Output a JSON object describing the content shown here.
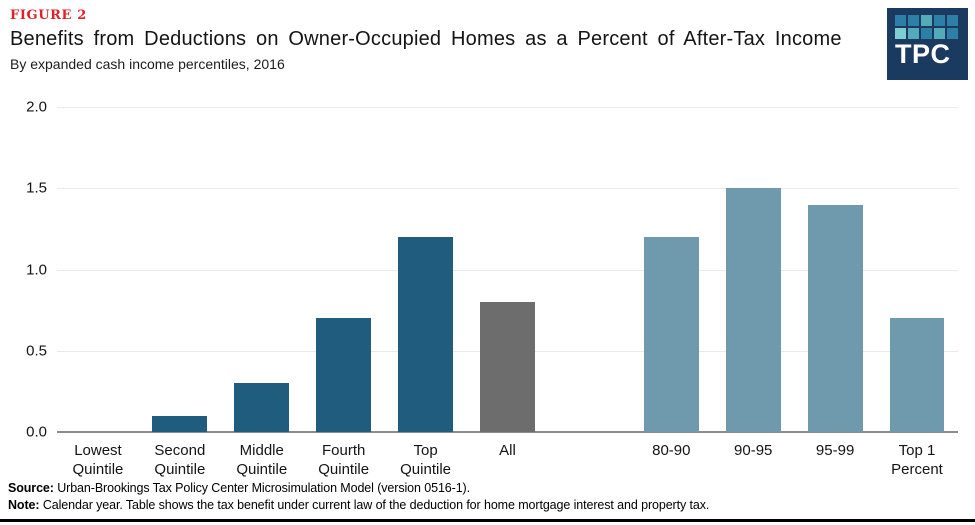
{
  "header": {
    "figure_label": "FIGURE 2",
    "title": "Benefits from Deductions on Owner-Occupied Homes as a Percent of After-Tax Income",
    "subtitle": "By expanded cash income percentiles, 2016"
  },
  "logo": {
    "text": "TPC",
    "background_color": "#1b3a60",
    "square_colors": [
      "#2e7fa7",
      "#2e7fa7",
      "#53aab8",
      "#2e7fa7",
      "#2e7fa7",
      "#7ecdd1",
      "#53aab8",
      "#2e7fa7",
      "#53aab8",
      "#2e7fa7"
    ]
  },
  "chart_data": {
    "type": "bar",
    "title": "Benefits from Deductions on Owner-Occupied Homes as a Percent of After-Tax Income",
    "subtitle": "By expanded cash income percentiles, 2016",
    "categories": [
      "Lowest Quintile",
      "Second Quintile",
      "Middle Quintile",
      "Fourth Quintile",
      "Top Quintile",
      "All",
      "80-90",
      "90-95",
      "95-99",
      "Top 1 Percent"
    ],
    "category_label_lines": [
      [
        "Lowest",
        "Quintile"
      ],
      [
        "Second",
        "Quintile"
      ],
      [
        "Middle",
        "Quintile"
      ],
      [
        "Fourth",
        "Quintile"
      ],
      [
        "Top",
        "Quintile"
      ],
      [
        "All"
      ],
      [
        "80-90"
      ],
      [
        "90-95"
      ],
      [
        "95-99"
      ],
      [
        "Top 1",
        "Percent"
      ]
    ],
    "values": [
      0.0,
      0.1,
      0.3,
      0.7,
      1.2,
      0.8,
      1.2,
      1.5,
      1.4,
      0.7
    ],
    "bar_colors": [
      "#1f5c7d",
      "#1f5c7d",
      "#1f5c7d",
      "#1f5c7d",
      "#1f5c7d",
      "#6d6d6d",
      "#6f99ac",
      "#6f99ac",
      "#6f99ac",
      "#6f99ac"
    ],
    "color_legend": {
      "quintiles": "#1f5c7d",
      "all": "#6d6d6d",
      "top_quintile_breakdown": "#6f99ac"
    },
    "ylim": [
      0,
      2.0
    ],
    "yticks": [
      0.0,
      0.5,
      1.0,
      1.5,
      2.0
    ],
    "gap_after_index": 5,
    "grid": "horizontal",
    "legend_position": "none",
    "xlabel": "",
    "ylabel": ""
  },
  "footer": {
    "source_label": "Source:",
    "source_text": " Urban-Brookings Tax Policy Center Microsimulation Model (version 0516-1).",
    "note_label": "Note:",
    "note_text": " Calendar year. Table shows the tax benefit under current law of the deduction for home mortgage interest and property tax."
  }
}
